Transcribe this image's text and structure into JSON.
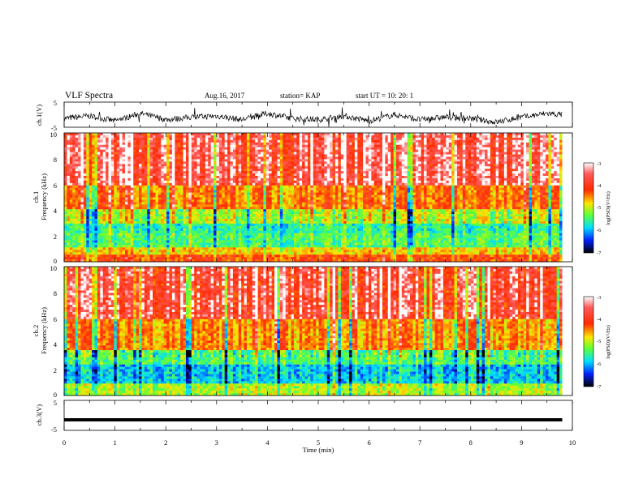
{
  "header": {
    "title": "VLF Spectra",
    "date": "Aug.16, 2017",
    "station": "station= KAP",
    "start": "start  UT =   10: 20: 1"
  },
  "chart_data": [
    {
      "type": "line",
      "panel": "ch1-waveform",
      "ylabel": "ch.1(V)",
      "xlim": [
        0,
        10
      ],
      "ylim": [
        -5,
        5
      ],
      "y_ticks": [
        "5",
        "-5"
      ],
      "note": "noisy waveform oscillating mostly between about 0 and -3 V across 0-9.8 min",
      "x": [
        0,
        0.5,
        1,
        1.5,
        2,
        2.5,
        3,
        3.5,
        4,
        4.5,
        5,
        5.5,
        6,
        6.5,
        7,
        7.5,
        8,
        8.5,
        9,
        9.5,
        9.8
      ],
      "y": [
        -1.5,
        -0.5,
        -2.5,
        0.5,
        -2,
        -1,
        -0.5,
        -2,
        0.5,
        -1.5,
        -2,
        -0.5,
        -2.5,
        0,
        -2,
        -1,
        -1.5,
        -3,
        -1,
        0.5,
        0
      ]
    },
    {
      "type": "heatmap",
      "panel": "ch1-spectrogram",
      "ylabel": "ch.1\nFrequency (kHz)",
      "xlim": [
        0,
        10
      ],
      "ylim": [
        0,
        10
      ],
      "y_ticks": [
        "0",
        "2",
        "4",
        "6",
        "8",
        "10"
      ],
      "colorbar": {
        "label": "log(PSD)(V²/Hz)",
        "ticks": [
          "-3",
          "-4",
          "-5",
          "-6",
          "-7"
        ],
        "range": [
          -7,
          -3
        ]
      },
      "bands_log_psd": [
        {
          "f_khz": [
            6,
            10
          ],
          "level": -3.4
        },
        {
          "f_khz": [
            4,
            6
          ],
          "level": -4.2
        },
        {
          "f_khz": [
            3,
            4
          ],
          "level": -5.0
        },
        {
          "f_khz": [
            2.3,
            3
          ],
          "level": -5.6
        },
        {
          "f_khz": [
            1.2,
            2.3
          ],
          "level": -5.4
        },
        {
          "f_khz": [
            0.6,
            1.2
          ],
          "level": -4.6
        },
        {
          "f_khz": [
            0,
            0.6
          ],
          "level": -4.0
        }
      ]
    },
    {
      "type": "heatmap",
      "panel": "ch2-spectrogram",
      "ylabel": "ch.2\nFrequency (kHz)",
      "xlim": [
        0,
        10
      ],
      "ylim": [
        0,
        10
      ],
      "y_ticks": [
        "0",
        "2",
        "4",
        "6",
        "8",
        "10"
      ],
      "colorbar": {
        "label": "log(PSD)(V²/Hz)",
        "ticks": [
          "-3",
          "-4",
          "-5",
          "-6",
          "-7"
        ],
        "range": [
          -7,
          -3
        ]
      },
      "bands_log_psd": [
        {
          "f_khz": [
            6,
            10
          ],
          "level": -3.5
        },
        {
          "f_khz": [
            3.5,
            6
          ],
          "level": -4.3
        },
        {
          "f_khz": [
            2.5,
            3.5
          ],
          "level": -5.4
        },
        {
          "f_khz": [
            1.0,
            2.5
          ],
          "level": -5.9
        },
        {
          "f_khz": [
            0,
            1.0
          ],
          "level": -5.0
        }
      ]
    },
    {
      "type": "line",
      "panel": "ch3-waveform",
      "ylabel": "ch.3(V)",
      "xlim": [
        0,
        10
      ],
      "ylim": [
        -5,
        5
      ],
      "y_ticks": [
        "5",
        "-5"
      ],
      "x": [
        0,
        9.8
      ],
      "y": [
        -1.5,
        -1.5
      ]
    }
  ],
  "x_axis": {
    "label": "Time (min)",
    "ticks": [
      "0",
      "1",
      "2",
      "3",
      "4",
      "5",
      "6",
      "7",
      "8",
      "9",
      "10"
    ]
  }
}
